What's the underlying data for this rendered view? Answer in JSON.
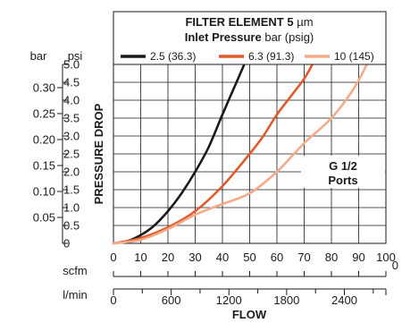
{
  "chart_data": {
    "type": "line",
    "title_prefix": "FILTER ELEMENT 5",
    "title_unit": "µm",
    "legend_heading_bold": "Inlet Pressure",
    "legend_heading_rest": " bar (psig)",
    "note_line1": "G 1/2",
    "note_line2": "Ports",
    "xlabel": "FLOW",
    "ylabel": "PRESSURE DROP",
    "bar_unit": "bar",
    "psi_unit": "psi",
    "scfm_unit": "scfm",
    "lmin_unit": "l/min",
    "stray_label": "0",
    "xlim": [
      0,
      100
    ],
    "ylim": [
      0,
      5.0
    ],
    "scfm_ticks": [
      0,
      10,
      20,
      30,
      40,
      50,
      60,
      70,
      80,
      90,
      100
    ],
    "lmin_ticks": [
      0,
      600,
      1200,
      1800,
      2400
    ],
    "lmin_labels": [
      "0",
      "600",
      "1200",
      "1800",
      "2400"
    ],
    "psi_ticks": [
      0,
      0.5,
      1.0,
      1.5,
      2.0,
      2.5,
      3.0,
      3.5,
      4.0,
      4.5,
      5.0
    ],
    "psi_labels": [
      "0",
      "0.5",
      "1.0",
      "1.5",
      "2.0",
      "2.5",
      "3.0",
      "3.5",
      "4.0",
      "4.5",
      "5.0"
    ],
    "bar_ticks": [
      0.05,
      0.1,
      0.15,
      0.2,
      0.25,
      0.3
    ],
    "bar_labels": [
      "0.05",
      "0.10",
      "0.15",
      "0.20",
      "0.25",
      "0.30"
    ],
    "series": [
      {
        "name": "2.5 (36.3)",
        "color": "#1a1a1a",
        "x": [
          0,
          5,
          10,
          15,
          20,
          25,
          30,
          35,
          40,
          44,
          48
        ],
        "y": [
          0,
          0.06,
          0.23,
          0.5,
          0.9,
          1.4,
          2.0,
          2.7,
          3.6,
          4.3,
          5.0
        ]
      },
      {
        "name": "6.3 (91.3)",
        "color": "#e05a2b",
        "x": [
          0,
          10,
          20,
          30,
          40,
          50,
          55,
          60,
          65,
          70,
          73
        ],
        "y": [
          0,
          0.15,
          0.45,
          0.9,
          1.6,
          2.5,
          3.0,
          3.6,
          4.1,
          4.6,
          5.0
        ]
      },
      {
        "name": "10 (145)",
        "color": "#f4ab8a",
        "x": [
          0,
          10,
          20,
          30,
          40,
          50,
          60,
          70,
          80,
          88,
          93
        ],
        "y": [
          0,
          0.1,
          0.4,
          0.8,
          1.1,
          1.4,
          2.0,
          2.8,
          3.5,
          4.3,
          5.0
        ]
      }
    ]
  }
}
